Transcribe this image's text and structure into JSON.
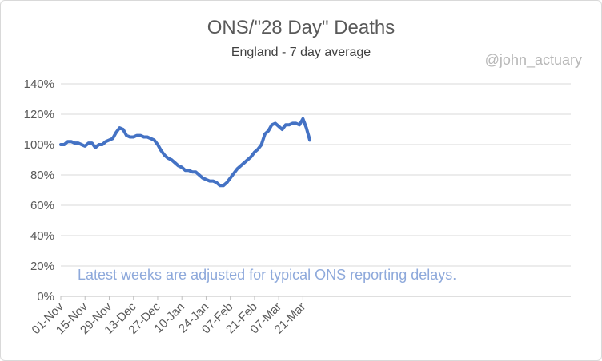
{
  "chart_data": {
    "type": "line",
    "title": "ONS/\"28 Day\" Deaths",
    "subtitle": "England - 7 day average",
    "watermark": "@john_actuary",
    "annotation": "Latest weeks are adjusted for typical ONS reporting delays.",
    "xlabel": "",
    "ylabel": "",
    "ylim": [
      0,
      1.4
    ],
    "y_ticks": [
      0,
      0.2,
      0.4,
      0.6,
      0.8,
      1.0,
      1.2,
      1.4
    ],
    "y_tick_labels": [
      "0%",
      "20%",
      "40%",
      "60%",
      "80%",
      "100%",
      "120%",
      "140%"
    ],
    "x_ticks": [
      "01-Nov",
      "15-Nov",
      "29-Nov",
      "13-Dec",
      "27-Dec",
      "10-Jan",
      "24-Jan",
      "07-Feb",
      "21-Feb",
      "07-Mar",
      "21-Mar"
    ],
    "grid": true,
    "legend": "none",
    "line_color": "#4472c4",
    "x": [
      "01-Nov",
      "03-Nov",
      "05-Nov",
      "07-Nov",
      "09-Nov",
      "11-Nov",
      "13-Nov",
      "15-Nov",
      "17-Nov",
      "19-Nov",
      "21-Nov",
      "23-Nov",
      "25-Nov",
      "27-Nov",
      "29-Nov",
      "01-Dec",
      "03-Dec",
      "05-Dec",
      "07-Dec",
      "09-Dec",
      "11-Dec",
      "13-Dec",
      "15-Dec",
      "17-Dec",
      "19-Dec",
      "21-Dec",
      "23-Dec",
      "25-Dec",
      "27-Dec",
      "29-Dec",
      "31-Dec",
      "02-Jan",
      "04-Jan",
      "06-Jan",
      "08-Jan",
      "10-Jan",
      "12-Jan",
      "14-Jan",
      "16-Jan",
      "18-Jan",
      "20-Jan",
      "22-Jan",
      "24-Jan",
      "26-Jan",
      "28-Jan",
      "30-Jan",
      "01-Feb",
      "03-Feb",
      "05-Feb",
      "07-Feb",
      "09-Feb",
      "11-Feb",
      "13-Feb",
      "15-Feb",
      "17-Feb",
      "19-Feb",
      "21-Feb",
      "23-Feb",
      "25-Feb",
      "27-Feb",
      "01-Mar",
      "03-Mar",
      "05-Mar",
      "07-Mar",
      "09-Mar",
      "11-Mar",
      "13-Mar",
      "15-Mar",
      "17-Mar",
      "19-Mar",
      "21-Mar",
      "23-Mar",
      "25-Mar"
    ],
    "values": [
      1.0,
      1.0,
      1.02,
      1.02,
      1.01,
      1.01,
      1.0,
      0.99,
      1.01,
      1.01,
      0.98,
      1.0,
      1.0,
      1.02,
      1.03,
      1.04,
      1.08,
      1.11,
      1.1,
      1.06,
      1.05,
      1.05,
      1.06,
      1.06,
      1.05,
      1.05,
      1.04,
      1.03,
      1.0,
      0.96,
      0.93,
      0.91,
      0.9,
      0.88,
      0.86,
      0.85,
      0.83,
      0.83,
      0.82,
      0.82,
      0.8,
      0.78,
      0.77,
      0.76,
      0.76,
      0.75,
      0.73,
      0.73,
      0.75,
      0.78,
      0.81,
      0.84,
      0.86,
      0.88,
      0.9,
      0.92,
      0.95,
      0.97,
      1.0,
      1.07,
      1.09,
      1.13,
      1.14,
      1.12,
      1.1,
      1.13,
      1.13,
      1.14,
      1.14,
      1.13,
      1.17,
      1.11,
      1.03
    ]
  }
}
